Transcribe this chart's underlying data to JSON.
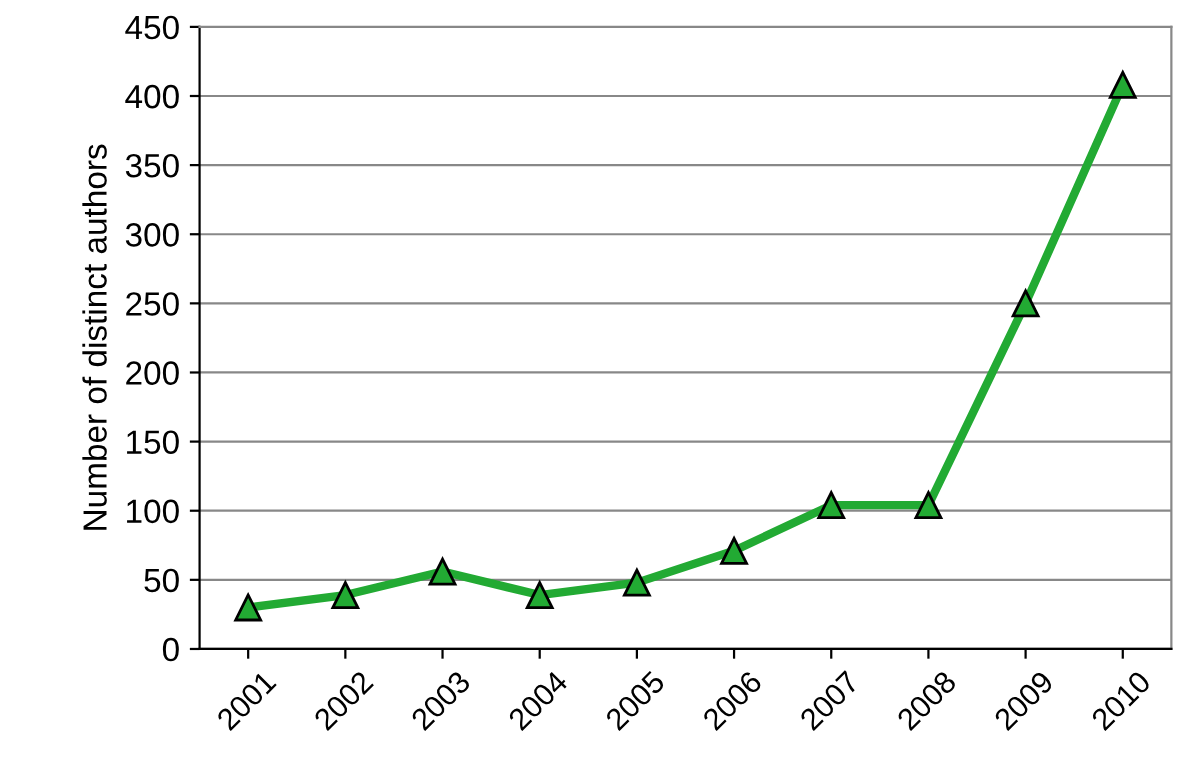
{
  "chart_data": {
    "type": "line",
    "ylabel": "Number of distinct authors",
    "categories": [
      "2001",
      "2002",
      "2003",
      "2004",
      "2005",
      "2006",
      "2007",
      "2008",
      "2009",
      "2010"
    ],
    "series": [
      {
        "color": "#22aa33",
        "values": [
          30,
          39,
          56,
          39,
          48,
          71,
          104,
          104,
          250,
          408
        ]
      }
    ],
    "ylim": [
      0,
      450
    ],
    "yticks": [
      0,
      50,
      100,
      150,
      200,
      250,
      300,
      350,
      400,
      450
    ],
    "grid": "y",
    "marker": "triangle",
    "line_style": "solid",
    "legend": false
  }
}
